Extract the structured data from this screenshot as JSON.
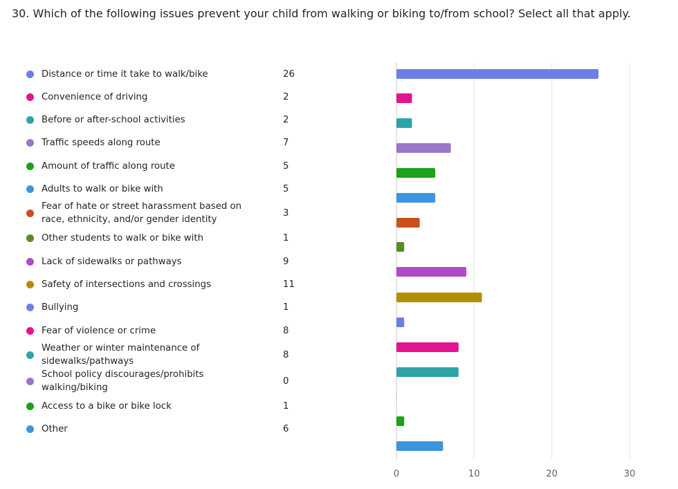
{
  "question": {
    "title": "30. Which of the following issues prevent your child from walking or biking to/from school? Select all that apply."
  },
  "chart_data": {
    "type": "bar",
    "orientation": "horizontal",
    "title": "30. Which of the following issues prevent your child from walking or biking to/from school? Select all that apply.",
    "xlabel": "",
    "ylabel": "",
    "xlim": [
      0,
      30
    ],
    "xticks": [
      0,
      10,
      20,
      30
    ],
    "grid": true,
    "legend_position": "left",
    "categories": [
      "Distance or time it take to walk/bike",
      "Convenience of driving",
      "Before or after-school activities",
      "Traffic speeds along route",
      "Amount of traffic along route",
      "Adults to walk or bike with",
      "Fear of hate or street harassment based on race, ethnicity, and/or gender identity",
      "Other students to walk or bike with",
      "Lack of sidewalks or pathways",
      "Safety of intersections and crossings",
      "Bullying",
      "Fear of violence or crime",
      "Weather or winter maintenance of sidewalks/pathways",
      "School policy discourages/prohibits walking/biking",
      "Access to a bike or bike lock",
      "Other"
    ],
    "values": [
      26,
      2,
      2,
      7,
      5,
      5,
      3,
      1,
      9,
      11,
      1,
      8,
      8,
      0,
      1,
      6
    ],
    "colors": [
      "#6b7fe8",
      "#e3148f",
      "#2ea4a8",
      "#9a77c8",
      "#1aa21a",
      "#3d96dd",
      "#c9501c",
      "#5a8a2a",
      "#b24ac8",
      "#b09000",
      "#6b7fe8",
      "#e3148f",
      "#2ea4a8",
      "#9a77c8",
      "#1aa21a",
      "#3d96dd"
    ]
  }
}
